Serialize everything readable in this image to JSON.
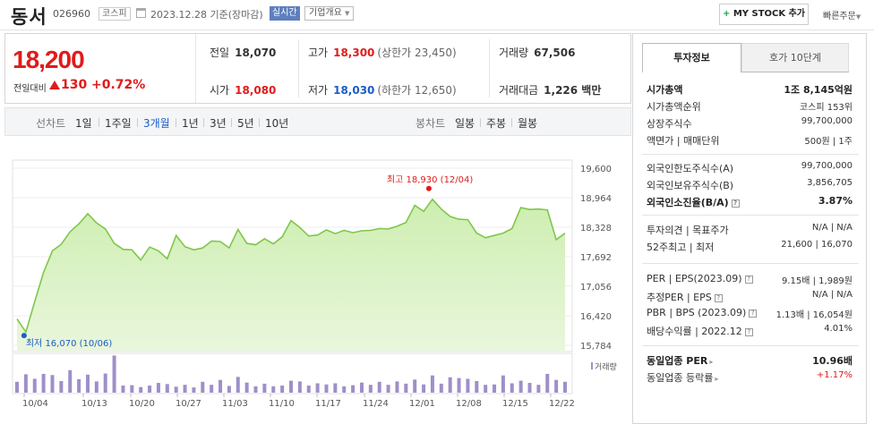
{
  "header": {
    "name": "동서",
    "code": "026960",
    "market": "코스피",
    "date": "2023.12.28 기준(장마감)",
    "realtime": "실시간",
    "company_overview": "기업개요",
    "mystock": "MY STOCK 추가",
    "quick_order": "빠른주문"
  },
  "summary": {
    "price": "18,200",
    "change_label": "전일대비",
    "change": "130",
    "change_pct": "+0.72%",
    "prev_close_label": "전일",
    "prev_close": "18,070",
    "high_label": "고가",
    "high": "18,300",
    "upper_limit": "(상한가 23,450)",
    "volume_label": "거래량",
    "volume": "67,506",
    "open_label": "시가",
    "open": "18,080",
    "low_label": "저가",
    "low": "18,030",
    "lower_limit": "(하한가 12,650)",
    "amount_label": "거래대금",
    "amount": "1,226 백만"
  },
  "periods": {
    "line_label": "선차트",
    "line_items": [
      "1일",
      "1주일",
      "3개월",
      "1년",
      "3년",
      "5년",
      "10년"
    ],
    "selected": "3개월",
    "candle_label": "봉차트",
    "candle_items": [
      "일봉",
      "주봉",
      "월봉"
    ]
  },
  "chart_data": {
    "type": "area",
    "x_ticks": [
      "10/04",
      "10/13",
      "10/20",
      "10/27",
      "11/03",
      "11/10",
      "11/17",
      "11/24",
      "12/01",
      "12/08",
      "12/15",
      "12/22"
    ],
    "y_ticks": [
      "19,600",
      "18,964",
      "18,328",
      "17,692",
      "17,056",
      "16,420",
      "15,784"
    ],
    "ylim": [
      15784,
      19600
    ],
    "prices": [
      16350,
      16070,
      16720,
      17350,
      17820,
      17960,
      18230,
      18400,
      18620,
      18420,
      18290,
      17980,
      17850,
      17840,
      17620,
      17900,
      17820,
      17650,
      18150,
      17910,
      17840,
      17880,
      18030,
      18020,
      17880,
      18280,
      17980,
      17950,
      18080,
      17970,
      18120,
      18470,
      18320,
      18140,
      18160,
      18270,
      18190,
      18260,
      18210,
      18250,
      18260,
      18300,
      18290,
      18350,
      18430,
      18800,
      18670,
      18930,
      18720,
      18560,
      18500,
      18490,
      18200,
      18100,
      18150,
      18200,
      18300,
      18750,
      18710,
      18720,
      18700,
      18060,
      18200
    ],
    "volumes": [
      0.29,
      0.49,
      0.37,
      0.5,
      0.47,
      0.31,
      0.6,
      0.36,
      0.48,
      0.3,
      0.51,
      0.99,
      0.19,
      0.2,
      0.15,
      0.19,
      0.26,
      0.23,
      0.16,
      0.21,
      0.14,
      0.29,
      0.21,
      0.34,
      0.18,
      0.42,
      0.27,
      0.17,
      0.24,
      0.17,
      0.19,
      0.32,
      0.3,
      0.19,
      0.25,
      0.22,
      0.25,
      0.17,
      0.2,
      0.27,
      0.21,
      0.29,
      0.21,
      0.3,
      0.24,
      0.35,
      0.22,
      0.46,
      0.24,
      0.41,
      0.39,
      0.37,
      0.31,
      0.21,
      0.22,
      0.46,
      0.25,
      0.32,
      0.26,
      0.21,
      0.5,
      0.34,
      0.29
    ],
    "max_label": "최고 18,930 (12/04)",
    "min_label": "최저 16,070 (10/06)",
    "volume_label": "거래량",
    "line_color": "#7fc74a",
    "fill_color": "#e9f6dc",
    "bar_color": "#9f8fc9",
    "max_marker_color": "#e01b1b",
    "min_marker_color": "#1a5cc8"
  },
  "right_panel": {
    "tabs": [
      "투자정보",
      "호가 10단계"
    ],
    "rows": [
      {
        "k": "시가총액",
        "v": "1조 8,145억원"
      },
      {
        "k": "시가총액순위",
        "v": "코스피 153위"
      },
      {
        "k": "상장주식수",
        "v": "99,700,000"
      },
      {
        "k": "액면가 | 매매단위",
        "v": "500원 | 1주"
      },
      {
        "k": "외국인한도주식수(A)",
        "v": "99,700,000"
      },
      {
        "k": "외국인보유주식수(B)",
        "v": "3,856,705"
      },
      {
        "k": "외국인소진율(B/A)",
        "v": "3.87%"
      },
      {
        "k": "투자의견 | 목표주가",
        "v": "N/A | N/A"
      },
      {
        "k": "52주최고 | 최저",
        "v": "21,600 | 16,070"
      },
      {
        "k": "PER | EPS(2023.09)",
        "v": "9.15배 | 1,989원"
      },
      {
        "k": "추정PER | EPS",
        "v": "N/A | N/A"
      },
      {
        "k": "PBR | BPS (2023.09)",
        "v": "1.13배 | 16,054원"
      },
      {
        "k": "배당수익률 | 2022.12",
        "v": "4.01%"
      },
      {
        "k": "동일업종 PER",
        "v": "10.96배"
      },
      {
        "k": "동일업종 등락률",
        "v": "+1.17%"
      }
    ]
  }
}
